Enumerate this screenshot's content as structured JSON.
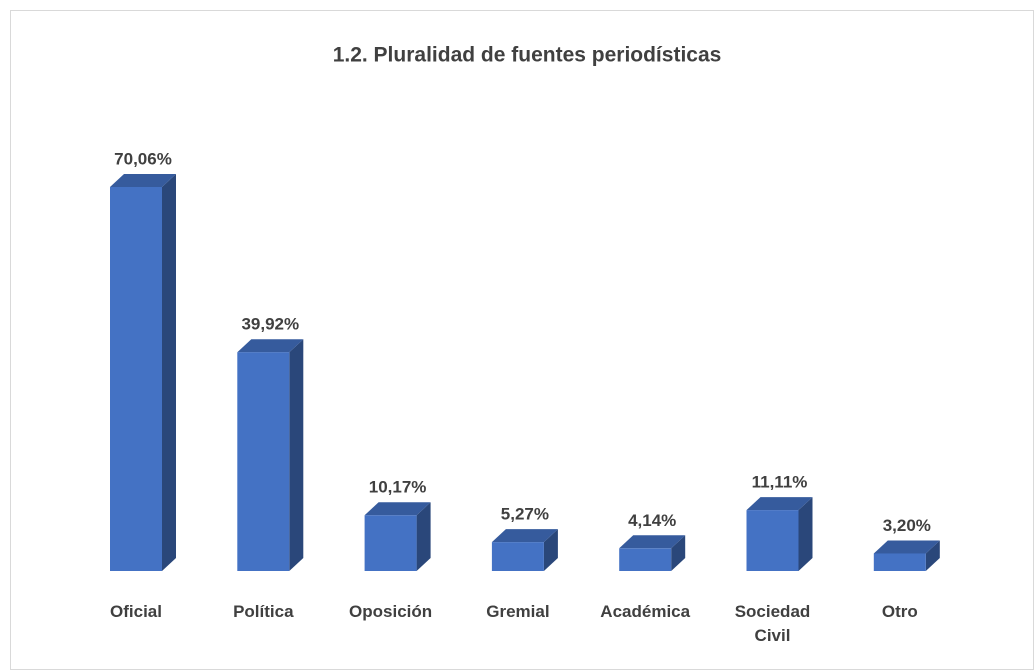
{
  "chart_data": {
    "type": "bar3d",
    "title": "1.2. Pluralidad de fuentes periodísticas",
    "categories": [
      "Oficial",
      "Política",
      "Oposición",
      "Gremial",
      "Académica",
      "Sociedad Civil",
      "Otro"
    ],
    "values": [
      70.06,
      39.92,
      10.17,
      5.27,
      4.14,
      11.11,
      3.2
    ],
    "value_labels": [
      "70,06%",
      "39,92%",
      "10,17%",
      "5,27%",
      "4,14%",
      "11,11%",
      "3,20%"
    ],
    "color": "#4472c4"
  }
}
